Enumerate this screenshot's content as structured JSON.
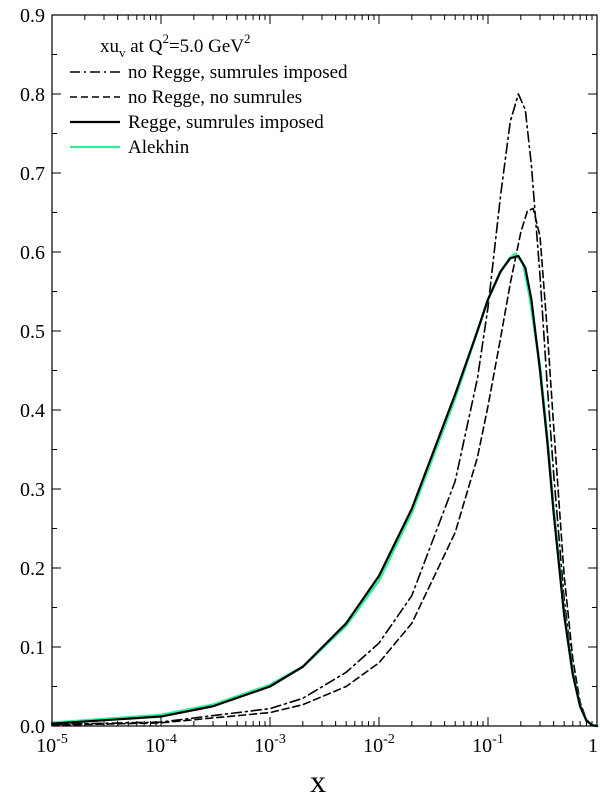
{
  "chart_data": {
    "type": "line",
    "title_parts": {
      "lead": "xu",
      "sub": "v",
      "mid": " at Q",
      "sup1": "2",
      "tail": "=5.0 GeV",
      "sup2": "2"
    },
    "xlabel": "x",
    "ylabel": "",
    "x_scale": "log",
    "xlim": [
      1e-05,
      1
    ],
    "ylim": [
      0,
      0.9
    ],
    "grid": false,
    "legend_position": "top-left",
    "x_ticks": [
      {
        "value": 1e-05,
        "base": "10",
        "exp": "-5"
      },
      {
        "value": 0.0001,
        "base": "10",
        "exp": "-4"
      },
      {
        "value": 0.001,
        "base": "10",
        "exp": "-3"
      },
      {
        "value": 0.01,
        "base": "10",
        "exp": "-2"
      },
      {
        "value": 0.1,
        "base": "10",
        "exp": "-1"
      },
      {
        "value": 1,
        "base": "1",
        "exp": ""
      }
    ],
    "y_ticks": [
      {
        "value": 0.0,
        "label": "0.0"
      },
      {
        "value": 0.1,
        "label": "0.1"
      },
      {
        "value": 0.2,
        "label": "0.2"
      },
      {
        "value": 0.3,
        "label": "0.3"
      },
      {
        "value": 0.4,
        "label": "0.4"
      },
      {
        "value": 0.5,
        "label": "0.5"
      },
      {
        "value": 0.6,
        "label": "0.6"
      },
      {
        "value": 0.7,
        "label": "0.7"
      },
      {
        "value": 0.8,
        "label": "0.8"
      },
      {
        "value": 0.9,
        "label": "0.9"
      }
    ],
    "series": [
      {
        "name": "no Regge, sumrules imposed",
        "color": "#000000",
        "dash": "dashdot",
        "x": [
          1e-05,
          0.0001,
          0.001,
          0.002,
          0.005,
          0.01,
          0.02,
          0.05,
          0.08,
          0.1,
          0.13,
          0.16,
          0.19,
          0.22,
          0.25,
          0.3,
          0.35,
          0.4,
          0.5,
          0.6,
          0.7,
          0.8,
          0.9,
          1
        ],
        "y": [
          0.002,
          0.005,
          0.022,
          0.035,
          0.068,
          0.105,
          0.165,
          0.31,
          0.44,
          0.53,
          0.67,
          0.765,
          0.8,
          0.78,
          0.71,
          0.57,
          0.43,
          0.32,
          0.16,
          0.07,
          0.025,
          0.006,
          0.001,
          0
        ]
      },
      {
        "name": "no Regge, no sumrules",
        "color": "#000000",
        "dash": "dashed",
        "x": [
          1e-05,
          0.0001,
          0.001,
          0.002,
          0.005,
          0.01,
          0.02,
          0.05,
          0.08,
          0.1,
          0.13,
          0.16,
          0.2,
          0.23,
          0.26,
          0.3,
          0.35,
          0.4,
          0.5,
          0.6,
          0.7,
          0.8,
          0.9,
          1
        ],
        "y": [
          0.001,
          0.004,
          0.017,
          0.027,
          0.05,
          0.08,
          0.13,
          0.245,
          0.34,
          0.405,
          0.49,
          0.56,
          0.625,
          0.652,
          0.655,
          0.62,
          0.5,
          0.38,
          0.19,
          0.085,
          0.03,
          0.008,
          0.001,
          0
        ]
      },
      {
        "name": "Regge, sumrules imposed",
        "color": "#000000",
        "dash": "solid",
        "x": [
          1e-05,
          0.0001,
          0.0003,
          0.001,
          0.002,
          0.005,
          0.01,
          0.02,
          0.05,
          0.08,
          0.1,
          0.13,
          0.16,
          0.19,
          0.22,
          0.25,
          0.3,
          0.35,
          0.4,
          0.5,
          0.6,
          0.7,
          0.8,
          0.9,
          1
        ],
        "y": [
          0.003,
          0.012,
          0.025,
          0.05,
          0.075,
          0.13,
          0.19,
          0.275,
          0.42,
          0.5,
          0.54,
          0.575,
          0.592,
          0.595,
          0.58,
          0.54,
          0.45,
          0.36,
          0.27,
          0.14,
          0.065,
          0.025,
          0.007,
          0.001,
          0
        ]
      },
      {
        "name": "Alekhin",
        "color": "#33ee99",
        "dash": "solid",
        "x": [
          1e-05,
          0.0001,
          0.0003,
          0.001,
          0.002,
          0.005,
          0.01,
          0.02,
          0.05,
          0.08,
          0.1,
          0.13,
          0.16,
          0.18,
          0.21,
          0.24,
          0.3,
          0.35,
          0.4,
          0.5,
          0.6,
          0.7,
          0.8,
          0.9,
          1
        ],
        "y": [
          0.004,
          0.014,
          0.027,
          0.052,
          0.075,
          0.127,
          0.184,
          0.27,
          0.415,
          0.5,
          0.54,
          0.575,
          0.593,
          0.598,
          0.585,
          0.545,
          0.455,
          0.365,
          0.275,
          0.142,
          0.066,
          0.025,
          0.007,
          0.001,
          0
        ]
      }
    ]
  }
}
